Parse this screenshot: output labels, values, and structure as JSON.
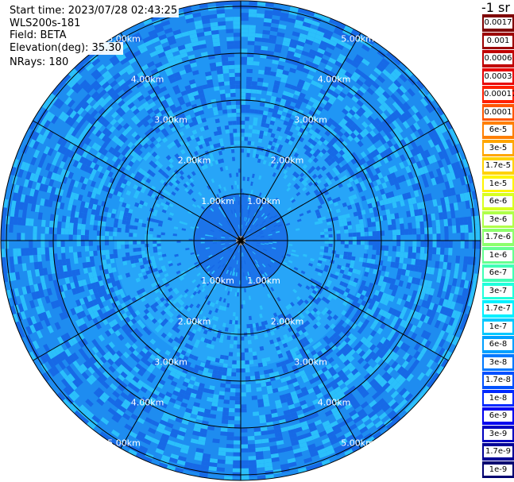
{
  "header": {
    "start_time": "Start time: 2023/07/28 02:43:25",
    "instrument": "WLS200s-181",
    "field": "Field: BETA",
    "elevation": "Elevation(deg): 35.30",
    "nrays": "NRays: 180"
  },
  "colorbar": {
    "unit_label": "-1 sr",
    "entries": [
      {
        "label": "0.0017",
        "color": "#7f0000"
      },
      {
        "label": "0.001",
        "color": "#9c0000"
      },
      {
        "label": "0.0006",
        "color": "#c00000"
      },
      {
        "label": "0.0003",
        "color": "#e80000"
      },
      {
        "label": "0.00017",
        "color": "#ff2000"
      },
      {
        "label": "0.0001",
        "color": "#ff5500"
      },
      {
        "label": "6e-5",
        "color": "#ff7f00"
      },
      {
        "label": "3e-5",
        "color": "#ffa600"
      },
      {
        "label": "1.7e-5",
        "color": "#ffd200"
      },
      {
        "label": "1e-5",
        "color": "#fff500"
      },
      {
        "label": "6e-6",
        "color": "#d8ff20"
      },
      {
        "label": "3e-6",
        "color": "#b0ff48"
      },
      {
        "label": "1.7e-6",
        "color": "#8cff6c"
      },
      {
        "label": "1e-6",
        "color": "#66ff90"
      },
      {
        "label": "6e-7",
        "color": "#40ffb6"
      },
      {
        "label": "3e-7",
        "color": "#20ffdc"
      },
      {
        "label": "1.7e-7",
        "color": "#00f0ff"
      },
      {
        "label": "1e-7",
        "color": "#00c8ff"
      },
      {
        "label": "6e-8",
        "color": "#00a0ff"
      },
      {
        "label": "3e-8",
        "color": "#0078ff"
      },
      {
        "label": "1.7e-8",
        "color": "#0050ff"
      },
      {
        "label": "1e-8",
        "color": "#0028ff"
      },
      {
        "label": "6e-9",
        "color": "#0000f0"
      },
      {
        "label": "3e-9",
        "color": "#0000c0"
      },
      {
        "label": "1.7e-9",
        "color": "#000096"
      },
      {
        "label": "1e-9",
        "color": "#000070"
      }
    ]
  },
  "ppi": {
    "range_labels": [
      "1.00km",
      "2.00km",
      "3.00km",
      "4.00km",
      "5.00km"
    ],
    "spoke_count": 12,
    "colors": {
      "outer_field": "#1e8cf0",
      "mid_field": "#1f96f5",
      "inner_field": "#27a5f8",
      "center_field": "#1c74ea",
      "cell_dark": "#1769e6",
      "cell_light": "#2bc0fb",
      "grid": "#000000",
      "label": "#ffffff"
    }
  }
}
